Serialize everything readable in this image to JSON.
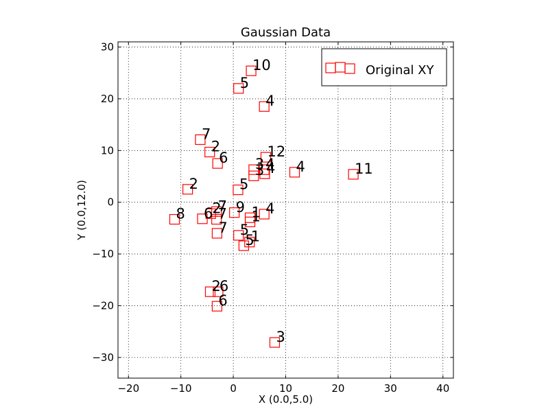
{
  "chart_data": {
    "type": "scatter",
    "title": "Gaussian Data",
    "xlabel": "X (0.0,5.0)",
    "ylabel": "Y (0.0,12.0)",
    "xlim": [
      -22,
      42
    ],
    "ylim": [
      -34,
      31
    ],
    "xticks": [
      -20,
      -10,
      0,
      10,
      20,
      30,
      40
    ],
    "yticks": [
      -30,
      -20,
      -10,
      0,
      10,
      20,
      30
    ],
    "xtick_labels": [
      "−20",
      "−10",
      "0",
      "10",
      "20",
      "30",
      "40"
    ],
    "ytick_labels": [
      "−30",
      "−20",
      "−10",
      "0",
      "10",
      "20",
      "30"
    ],
    "grid": true,
    "legend_position": "top-right",
    "colors": {
      "marker": "#ff0000",
      "grid": "#000000",
      "axes": "#000000"
    },
    "series": [
      {
        "name": "Original XY",
        "marker": "square",
        "points": [
          {
            "x": 3.4,
            "y": 25.4,
            "label": "10"
          },
          {
            "x": 1.0,
            "y": 22.0,
            "label": "5"
          },
          {
            "x": 5.9,
            "y": 18.5,
            "label": "4"
          },
          {
            "x": -6.3,
            "y": 12.1,
            "label": "7"
          },
          {
            "x": -4.5,
            "y": 9.7,
            "label": "2"
          },
          {
            "x": -3.0,
            "y": 7.5,
            "label": "6"
          },
          {
            "x": 6.2,
            "y": 8.7,
            "label": "12"
          },
          {
            "x": 3.9,
            "y": 6.3,
            "label": "3"
          },
          {
            "x": 5.9,
            "y": 6.3,
            "label": "4"
          },
          {
            "x": 3.9,
            "y": 5.1,
            "label": "3"
          },
          {
            "x": 6.0,
            "y": 5.5,
            "label": "4"
          },
          {
            "x": 11.7,
            "y": 5.8,
            "label": "4"
          },
          {
            "x": 22.9,
            "y": 5.4,
            "label": "11"
          },
          {
            "x": -8.7,
            "y": 2.5,
            "label": "2"
          },
          {
            "x": 0.9,
            "y": 2.4,
            "label": "5"
          },
          {
            "x": -11.2,
            "y": -3.3,
            "label": "8"
          },
          {
            "x": -5.9,
            "y": -3.2,
            "label": "6"
          },
          {
            "x": -4.3,
            "y": -2.2,
            "label": "2"
          },
          {
            "x": -3.2,
            "y": -1.8,
            "label": "7"
          },
          {
            "x": -3.2,
            "y": -3.3,
            "label": "7"
          },
          {
            "x": 0.2,
            "y": -2.0,
            "label": "9"
          },
          {
            "x": 3.2,
            "y": -3.0,
            "label": "1"
          },
          {
            "x": 3.2,
            "y": -3.8,
            "label": "1"
          },
          {
            "x": 5.9,
            "y": -2.3,
            "label": "4"
          },
          {
            "x": -3.1,
            "y": -6.0,
            "label": "7"
          },
          {
            "x": 1.0,
            "y": -6.4,
            "label": "5"
          },
          {
            "x": 2.0,
            "y": -8.4,
            "label": "5"
          },
          {
            "x": 3.1,
            "y": -7.7,
            "label": "1"
          },
          {
            "x": -4.4,
            "y": -17.3,
            "label": "2"
          },
          {
            "x": -2.9,
            "y": -17.3,
            "label": "6"
          },
          {
            "x": -3.1,
            "y": -20.1,
            "label": "6"
          },
          {
            "x": 7.9,
            "y": -27.1,
            "label": "3"
          }
        ]
      }
    ]
  }
}
